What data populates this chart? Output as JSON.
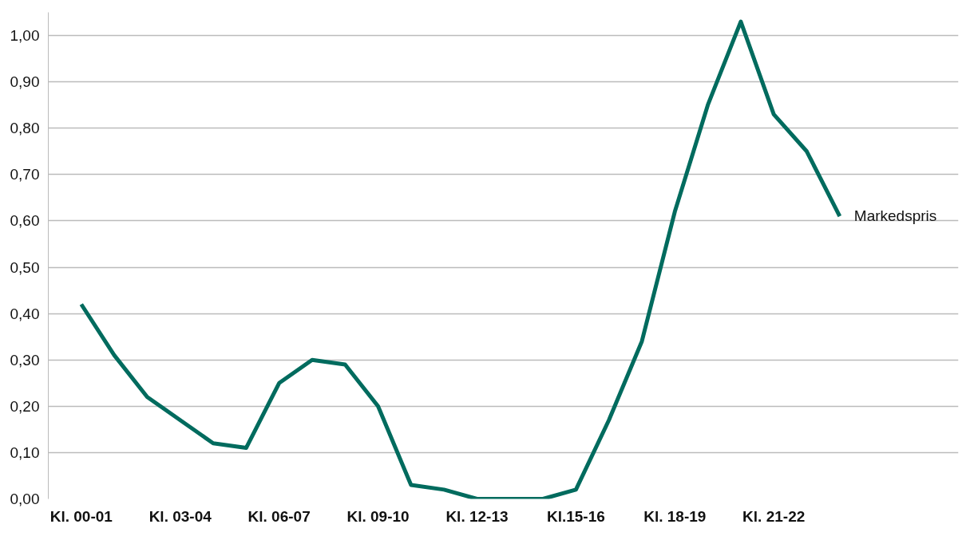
{
  "chart_data": {
    "type": "line",
    "categories": [
      "Kl. 00-01",
      null,
      null,
      "Kl. 03-04",
      null,
      null,
      "Kl. 06-07",
      null,
      null,
      "Kl. 09-10",
      null,
      null,
      "Kl. 12-13",
      null,
      null,
      "Kl.15-16",
      null,
      null,
      "Kl. 18-19",
      null,
      null,
      "Kl. 21-22",
      null,
      null
    ],
    "series": [
      {
        "name": "Markedspris",
        "color": "#006b5e",
        "values": [
          0.42,
          0.31,
          0.22,
          0.17,
          0.12,
          0.11,
          0.25,
          0.3,
          0.29,
          0.2,
          0.03,
          0.02,
          0.0,
          0.0,
          0.0,
          0.02,
          0.17,
          0.34,
          0.62,
          0.85,
          1.03,
          0.83,
          0.75,
          0.61
        ]
      }
    ],
    "ylim": [
      0,
      1.05
    ],
    "yticks": [
      {
        "value": 0,
        "label": "0,00"
      },
      {
        "value": 0.1,
        "label": "0,10"
      },
      {
        "value": 0.2,
        "label": "0,20"
      },
      {
        "value": 0.3,
        "label": "0,30"
      },
      {
        "value": 0.4,
        "label": "0,40"
      },
      {
        "value": 0.5,
        "label": "0,50"
      },
      {
        "value": 0.6,
        "label": "0,60"
      },
      {
        "value": 0.7,
        "label": "0,70"
      },
      {
        "value": 0.8,
        "label": "0,80"
      },
      {
        "value": 0.9,
        "label": "0,90"
      },
      {
        "value": 1.0,
        "label": "1,00"
      }
    ],
    "grid": "y",
    "marker": "none",
    "line_style": "solid"
  }
}
